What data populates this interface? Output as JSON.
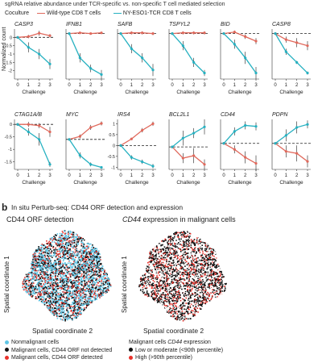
{
  "panel_a": {
    "header": "sgRNA relative abundance under TCR-specific vs. non-specific T cell mediated selection",
    "legend_title": "Coculture",
    "legend_items": [
      {
        "label": "Wild-type CD8 T cells",
        "color": "#e0695c"
      },
      {
        "label": "NY-ESO1-TCR CD8 T cells",
        "color": "#27b1c1"
      }
    ],
    "ylabel": "Normalized count",
    "xlabel": "Challenge"
  },
  "panel_b": {
    "letter": "b",
    "header": "In situ Perturb-seq: CD44 ORF detection and expression",
    "left_title": "CD44 ORF detection",
    "right_title": "CD44 expression in malignant cells",
    "right_title_prefix": "CD44",
    "right_title_suffix": " expression in malignant cells",
    "ylabel": "Spatial coordinate 1",
    "xlabel": "Spatial coordinate 2",
    "legend_left": [
      {
        "label": "Nonmalignant cells",
        "color": "#5fc6e6"
      },
      {
        "label": "Malignant cells, CD44 ORF not detected",
        "color": "#111111"
      },
      {
        "label": "Malignant cells, CD44 ORF detected",
        "color": "#e8322b"
      }
    ],
    "legend_right_title_prefix": "Malignant cells ",
    "legend_right_title_gene": "CD44",
    "legend_right_title_suffix": " expression",
    "legend_right": [
      {
        "label": "Low or moderate (<90th percentile)",
        "color": "#111111"
      },
      {
        "label": "High (>90th percentile)",
        "color": "#e8322b"
      }
    ],
    "colors": {
      "nonmalignant": "#5fc6e6",
      "not_detected": "#111111",
      "detected": "#e8322b",
      "low": "#111111",
      "high": "#e8322b"
    }
  },
  "chart_data": [
    {
      "type": "line",
      "title": "CASP3",
      "x": [
        0,
        1,
        2,
        3
      ],
      "ylim": [
        -2.5,
        0.5
      ],
      "yticks": [
        0,
        -0.5,
        -1,
        -1.5,
        -2
      ],
      "reference_line": 0,
      "series": [
        {
          "name": "Wild-type CD8 T cells",
          "values": [
            0,
            0.05,
            0.25,
            0.1
          ],
          "err": [
            0.05,
            0.1,
            0.15,
            0.1
          ]
        },
        {
          "name": "NY-ESO1-TCR CD8 T cells",
          "values": [
            0,
            -0.6,
            -1,
            -1.6
          ],
          "err": [
            0.05,
            0.3,
            0.3,
            0.3
          ]
        }
      ]
    },
    {
      "type": "line",
      "title": "IFNB1",
      "x": [
        0,
        1,
        2,
        3
      ],
      "ylim": [
        -3.0,
        0.3
      ],
      "reference_line": 0,
      "series": [
        {
          "name": "Wild-type CD8 T cells",
          "values": [
            0,
            0.05,
            0.0,
            0.05
          ],
          "err": [
            0.05,
            0.05,
            0.05,
            0.05
          ]
        },
        {
          "name": "NY-ESO1-TCR CD8 T cells",
          "values": [
            0,
            -1.6,
            -2.3,
            -2.7
          ],
          "err": [
            0.05,
            0.3,
            0.25,
            0.3
          ]
        }
      ]
    },
    {
      "type": "line",
      "title": "SAFB",
      "x": [
        0,
        1,
        2,
        3
      ],
      "ylim": [
        -3.0,
        0.3
      ],
      "reference_line": 0,
      "series": [
        {
          "name": "Wild-type CD8 T cells",
          "values": [
            0,
            0.05,
            0.05,
            0.0
          ],
          "err": [
            0.05,
            0.1,
            0.1,
            0.1
          ]
        },
        {
          "name": "NY-ESO1-TCR CD8 T cells",
          "values": [
            0,
            -1.0,
            -1.6,
            -2.4
          ],
          "err": [
            0.05,
            0.3,
            0.3,
            0.4
          ]
        }
      ]
    },
    {
      "type": "line",
      "title": "TSPYL2",
      "x": [
        0,
        1,
        2,
        3
      ],
      "ylim": [
        -3.0,
        0.3
      ],
      "reference_line": 0,
      "series": [
        {
          "name": "Wild-type CD8 T cells",
          "values": [
            0,
            0.05,
            0.05,
            0.05
          ],
          "err": [
            0.05,
            0.1,
            0.1,
            0.1
          ]
        },
        {
          "name": "NY-ESO1-TCR CD8 T cells",
          "values": [
            0,
            -0.8,
            -1.9,
            -2.6
          ],
          "err": [
            0.05,
            0.3,
            0.3,
            0.2
          ]
        }
      ]
    },
    {
      "type": "line",
      "title": "BID",
      "x": [
        0,
        1,
        2,
        3
      ],
      "ylim": [
        -3.0,
        0.3
      ],
      "reference_line": 0,
      "series": [
        {
          "name": "Wild-type CD8 T cells",
          "values": [
            0,
            0.1,
            -0.2,
            -0.5
          ],
          "err": [
            0.05,
            0.1,
            0.15,
            0.2
          ]
        },
        {
          "name": "NY-ESO1-TCR CD8 T cells",
          "values": [
            0,
            -0.7,
            -1.6,
            -2.6
          ],
          "err": [
            0.05,
            0.3,
            0.4,
            0.4
          ]
        }
      ]
    },
    {
      "type": "line",
      "title": "CASP8",
      "x": [
        0,
        1,
        2,
        3
      ],
      "ylim": [
        -3.0,
        0.3
      ],
      "reference_line": 0,
      "series": [
        {
          "name": "Wild-type CD8 T cells",
          "values": [
            0,
            -0.4,
            -0.6,
            -0.8
          ],
          "err": [
            0.05,
            0.2,
            0.3,
            0.3
          ]
        },
        {
          "name": "NY-ESO1-TCR CD8 T cells",
          "values": [
            0,
            -1.2,
            -1.9,
            -2.6
          ],
          "err": [
            0.05,
            0.2,
            0.1,
            0.1
          ]
        }
      ]
    },
    {
      "type": "line",
      "title": "CTAG1A/B",
      "x": [
        0,
        1,
        2,
        3
      ],
      "ylim": [
        -1.8,
        0.2
      ],
      "yticks": [
        0,
        -0.5,
        -1.0,
        -1.5
      ],
      "reference_line": 0,
      "series": [
        {
          "name": "Wild-type CD8 T cells",
          "values": [
            0,
            0.0,
            -0.05,
            -0.3
          ],
          "err": [
            0.05,
            0.1,
            0.1,
            0.2
          ]
        },
        {
          "name": "NY-ESO1-TCR CD8 T cells",
          "values": [
            0,
            -0.3,
            -0.6,
            -1.6
          ],
          "err": [
            0.05,
            0.15,
            0.25,
            0.1
          ]
        }
      ]
    },
    {
      "type": "line",
      "title": "MYC",
      "x": [
        0,
        1,
        2,
        3
      ],
      "ylim": [
        -3.0,
        2.0
      ],
      "reference_line": 0,
      "series": [
        {
          "name": "Wild-type CD8 T cells",
          "values": [
            0,
            0.3,
            1.2,
            1.6
          ],
          "err": [
            0.05,
            0.2,
            0.25,
            0.2
          ]
        },
        {
          "name": "NY-ESO1-TCR CD8 T cells",
          "values": [
            0,
            -1.6,
            -2.5,
            -2.8
          ],
          "err": [
            0.05,
            0.3,
            0.2,
            0.1
          ]
        }
      ]
    },
    {
      "type": "line",
      "title": "IRS4",
      "x": [
        0,
        1,
        2,
        3
      ],
      "ylim": [
        -1.1,
        1.2
      ],
      "yticks": [
        1.0,
        0.5,
        0,
        -0.5,
        -1.0
      ],
      "reference_line": 0,
      "series": [
        {
          "name": "Wild-type CD8 T cells",
          "values": [
            0,
            0.3,
            0.7,
            1.0
          ],
          "err": [
            0.05,
            0.05,
            0.1,
            0.1
          ]
        },
        {
          "name": "NY-ESO1-TCR CD8 T cells",
          "values": [
            0,
            -0.55,
            -0.75,
            -0.95
          ],
          "err": [
            0.05,
            0.1,
            0.1,
            0.1
          ]
        }
      ]
    },
    {
      "type": "line",
      "title": "BCL2L1",
      "x": [
        0,
        1,
        2,
        3
      ],
      "ylim": [
        -0.9,
        1.1
      ],
      "reference_line": 0,
      "series": [
        {
          "name": "Wild-type CD8 T cells",
          "values": [
            0,
            -0.45,
            -0.35,
            -0.7
          ],
          "err": [
            0.05,
            0.2,
            0.3,
            0.2
          ]
        },
        {
          "name": "NY-ESO1-TCR CD8 T cells",
          "values": [
            0,
            0.35,
            0.55,
            0.8
          ],
          "err": [
            0.05,
            0.3,
            0.2,
            0.3
          ]
        }
      ]
    },
    {
      "type": "line",
      "title": "CD44",
      "x": [
        0,
        1,
        2,
        3
      ],
      "ylim": [
        -1.3,
        1.2
      ],
      "reference_line": 0,
      "series": [
        {
          "name": "Wild-type CD8 T cells",
          "values": [
            0,
            -0.3,
            -0.7,
            -1.0
          ],
          "err": [
            0.05,
            0.2,
            0.3,
            0.4
          ]
        },
        {
          "name": "NY-ESO1-TCR CD8 T cells",
          "values": [
            0,
            0.6,
            0.9,
            0.85
          ],
          "err": [
            0.05,
            0.2,
            0.2,
            0.2
          ]
        }
      ]
    },
    {
      "type": "line",
      "title": "PDPN",
      "x": [
        0,
        1,
        2,
        3
      ],
      "ylim": [
        -1.3,
        1.2
      ],
      "reference_line": 0,
      "series": [
        {
          "name": "Wild-type CD8 T cells",
          "values": [
            0,
            -0.4,
            -0.5,
            -0.9
          ],
          "err": [
            0.05,
            0.3,
            0.4,
            0.3
          ]
        },
        {
          "name": "NY-ESO1-TCR CD8 T cells",
          "values": [
            0,
            0.4,
            0.8,
            0.95
          ],
          "err": [
            0.05,
            0.3,
            0.3,
            0.2
          ]
        }
      ]
    }
  ]
}
